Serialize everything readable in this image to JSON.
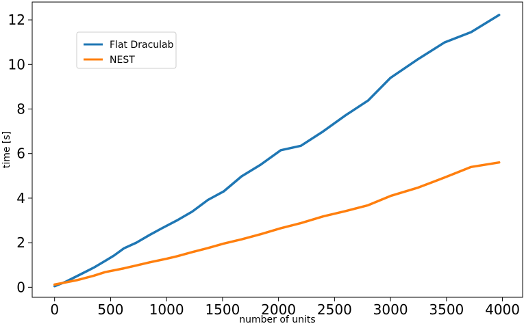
{
  "chart_data": {
    "type": "line",
    "xlabel": "number of units",
    "ylabel": "time [s]",
    "xlim": [
      -200,
      4180
    ],
    "ylim": [
      -0.45,
      12.8
    ],
    "xticks": [
      0,
      500,
      1000,
      1500,
      2000,
      2500,
      3000,
      3500,
      4000
    ],
    "yticks": [
      0,
      2,
      4,
      6,
      8,
      10,
      12
    ],
    "grid": false,
    "legend_position": "upper-left",
    "series": [
      {
        "name": "Flat Draculab",
        "color": "#1f77b4",
        "x": [
          0,
          100,
          200,
          350,
          450,
          530,
          620,
          730,
          850,
          960,
          1100,
          1230,
          1370,
          1510,
          1670,
          1840,
          2020,
          2200,
          2400,
          2600,
          2800,
          3000,
          3250,
          3480,
          3720,
          3970
        ],
        "y": [
          0.05,
          0.25,
          0.5,
          0.88,
          1.18,
          1.42,
          1.75,
          2.0,
          2.35,
          2.65,
          3.02,
          3.4,
          3.92,
          4.3,
          4.98,
          5.5,
          6.15,
          6.35,
          7.0,
          7.72,
          8.38,
          9.4,
          10.25,
          10.98,
          11.45,
          12.22
        ]
      },
      {
        "name": "NEST",
        "color": "#ff7f0e",
        "x": [
          0,
          100,
          200,
          350,
          450,
          620,
          730,
          850,
          1000,
          1100,
          1230,
          1370,
          1510,
          1670,
          1840,
          2020,
          2200,
          2400,
          2600,
          2800,
          3000,
          3250,
          3480,
          3720,
          3970
        ],
        "y": [
          0.12,
          0.22,
          0.32,
          0.52,
          0.68,
          0.85,
          0.98,
          1.12,
          1.28,
          1.4,
          1.58,
          1.76,
          1.96,
          2.15,
          2.38,
          2.65,
          2.88,
          3.18,
          3.42,
          3.68,
          4.1,
          4.48,
          4.92,
          5.4,
          5.6
        ]
      }
    ]
  }
}
